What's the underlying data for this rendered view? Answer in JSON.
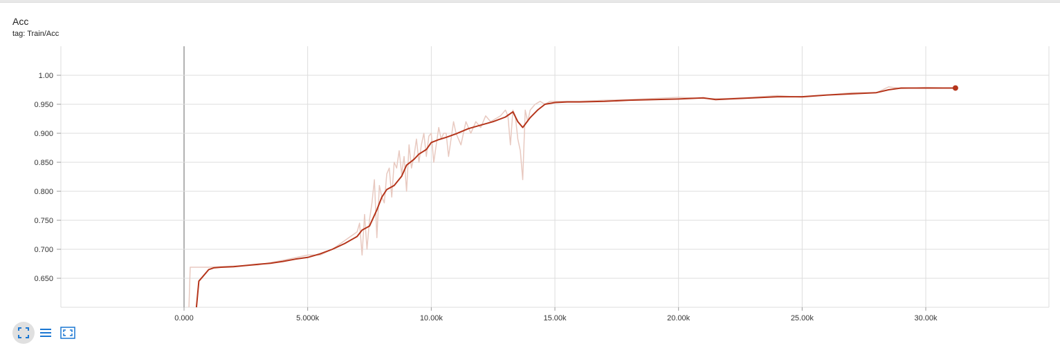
{
  "card": {
    "title": "Acc",
    "subtitle": "tag: Train/Acc"
  },
  "toolbar": {
    "items": [
      {
        "icon": "fit-domain-icon",
        "active": true
      },
      {
        "icon": "list-icon",
        "active": false
      },
      {
        "icon": "fullscreen-icon",
        "active": false
      }
    ],
    "icon_color": "#1976d2"
  },
  "chart_data": {
    "type": "line",
    "title": "Acc",
    "xlim": [
      -10000,
      35000
    ],
    "ylim": [
      0.6,
      1.04
    ],
    "x_ticks": [
      0,
      5000,
      10000,
      15000,
      20000,
      25000,
      30000
    ],
    "x_tick_labels": [
      "0.000",
      "5.000k",
      "10.00k",
      "15.00k",
      "20.00k",
      "25.00k",
      "30.00k"
    ],
    "y_ticks": [
      0.65,
      0.7,
      0.75,
      0.8,
      0.85,
      0.9,
      0.95,
      1.0
    ],
    "y_tick_labels": [
      "0.650",
      "0.700",
      "0.750",
      "0.800",
      "0.850",
      "0.900",
      "0.950",
      "1.00"
    ],
    "grid": true,
    "colors": {
      "smoothed": "#b5351b",
      "raw": "#e8c9c0",
      "grid": "#dddddd",
      "zero_line": "#999999"
    },
    "series": [
      {
        "role": "smoothed",
        "x": [
          500,
          600,
          800,
          1000,
          1200,
          1500,
          2000,
          2500,
          3000,
          3500,
          4000,
          4500,
          5000,
          5500,
          6000,
          6500,
          7000,
          7200,
          7500,
          7800,
          8000,
          8200,
          8500,
          8800,
          9000,
          9300,
          9500,
          9800,
          10000,
          10300,
          10600,
          11000,
          11500,
          12000,
          12500,
          13000,
          13300,
          13500,
          13700,
          14000,
          14300,
          14600,
          15000,
          15500,
          16000,
          17000,
          18000,
          19000,
          20000,
          21000,
          21500,
          22000,
          23000,
          24000,
          25000,
          26000,
          27000,
          28000,
          28500,
          29000,
          30000,
          31000,
          31200
        ],
        "y": [
          0.6,
          0.645,
          0.655,
          0.665,
          0.668,
          0.669,
          0.67,
          0.672,
          0.674,
          0.676,
          0.679,
          0.683,
          0.686,
          0.692,
          0.7,
          0.71,
          0.722,
          0.733,
          0.74,
          0.768,
          0.79,
          0.803,
          0.81,
          0.826,
          0.845,
          0.855,
          0.864,
          0.872,
          0.884,
          0.889,
          0.893,
          0.899,
          0.908,
          0.914,
          0.92,
          0.928,
          0.937,
          0.92,
          0.91,
          0.927,
          0.94,
          0.95,
          0.953,
          0.954,
          0.954,
          0.955,
          0.957,
          0.958,
          0.959,
          0.961,
          0.958,
          0.959,
          0.961,
          0.963,
          0.963,
          0.966,
          0.968,
          0.97,
          0.975,
          0.978,
          0.978,
          0.978,
          0.978
        ]
      },
      {
        "role": "raw",
        "x": [
          200,
          250,
          500,
          1000,
          2000,
          3000,
          4000,
          5000,
          5500,
          6000,
          6500,
          7000,
          7100,
          7200,
          7300,
          7400,
          7500,
          7600,
          7700,
          7800,
          7900,
          8000,
          8100,
          8200,
          8300,
          8400,
          8500,
          8600,
          8700,
          8800,
          8900,
          9000,
          9100,
          9200,
          9300,
          9400,
          9500,
          9600,
          9700,
          9800,
          9900,
          10000,
          10100,
          10200,
          10300,
          10400,
          10500,
          10600,
          10700,
          10800,
          10900,
          11000,
          11200,
          11400,
          11600,
          11800,
          12000,
          12200,
          12400,
          12600,
          12800,
          13000,
          13100,
          13200,
          13300,
          13400,
          13500,
          13600,
          13700,
          13800,
          13900,
          14000,
          14200,
          14400,
          14600,
          14800,
          15000,
          16000,
          17000,
          18000,
          19000,
          20000,
          21000,
          22000,
          23000,
          24000,
          25000,
          26000,
          27000,
          28000,
          28500,
          29000,
          30000,
          31000,
          31200
        ],
        "y": [
          0.6,
          0.669,
          0.669,
          0.669,
          0.671,
          0.673,
          0.681,
          0.69,
          0.69,
          0.7,
          0.715,
          0.73,
          0.745,
          0.69,
          0.76,
          0.7,
          0.75,
          0.78,
          0.82,
          0.72,
          0.81,
          0.79,
          0.78,
          0.83,
          0.84,
          0.79,
          0.85,
          0.84,
          0.87,
          0.83,
          0.86,
          0.8,
          0.88,
          0.84,
          0.86,
          0.89,
          0.85,
          0.88,
          0.9,
          0.86,
          0.895,
          0.9,
          0.85,
          0.88,
          0.91,
          0.89,
          0.9,
          0.9,
          0.86,
          0.89,
          0.92,
          0.9,
          0.88,
          0.92,
          0.9,
          0.92,
          0.91,
          0.93,
          0.92,
          0.925,
          0.93,
          0.94,
          0.93,
          0.88,
          0.94,
          0.93,
          0.89,
          0.87,
          0.82,
          0.94,
          0.92,
          0.94,
          0.95,
          0.955,
          0.95,
          0.955,
          0.955,
          0.955,
          0.957,
          0.958,
          0.96,
          0.962,
          0.96,
          0.96,
          0.962,
          0.965,
          0.962,
          0.966,
          0.97,
          0.97,
          0.98,
          0.977,
          0.979,
          0.978,
          0.978
        ]
      }
    ]
  }
}
